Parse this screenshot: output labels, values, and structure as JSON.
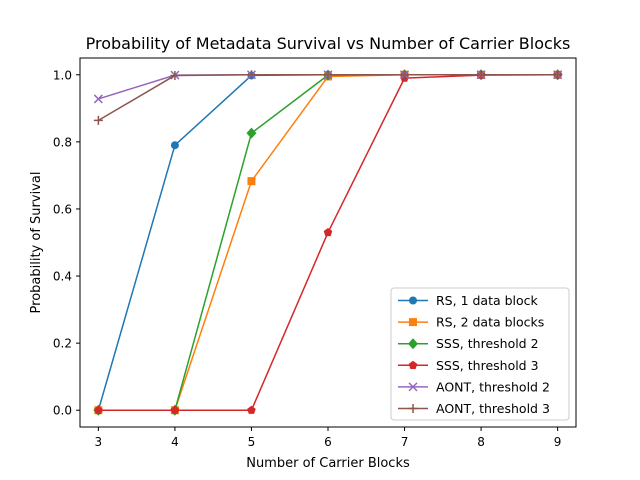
{
  "chart_data": {
    "type": "line",
    "title": "Probability of Metadata Survival vs Number of Carrier Blocks",
    "xlabel": "Number of Carrier Blocks",
    "ylabel": "Probability of Survival",
    "xlim": [
      2.76,
      9.24
    ],
    "ylim": [
      -0.05,
      1.05
    ],
    "x_ticks": [
      3,
      4,
      5,
      6,
      7,
      8,
      9
    ],
    "y_ticks": [
      0.0,
      0.2,
      0.4,
      0.6,
      0.8,
      1.0
    ],
    "y_tick_labels": [
      "0.0",
      "0.2",
      "0.4",
      "0.6",
      "0.8",
      "1.0"
    ],
    "grid": false,
    "legend_position": "lower-right",
    "series": [
      {
        "name": "RS, 1 data block",
        "color": "#1f77b4",
        "marker": "circle",
        "x": [
          3,
          4,
          5,
          6,
          7,
          8,
          9
        ],
        "y": [
          0.0,
          0.79,
          0.998,
          1.0,
          1.0,
          1.0,
          1.0
        ]
      },
      {
        "name": "RS, 2 data blocks",
        "color": "#ff7f0e",
        "marker": "square",
        "x": [
          3,
          4,
          5,
          6,
          7,
          8,
          9
        ],
        "y": [
          0.0,
          0.0,
          0.683,
          0.995,
          1.0,
          1.0,
          1.0
        ]
      },
      {
        "name": "SSS, threshold 2",
        "color": "#2ca02c",
        "marker": "diamond",
        "x": [
          3,
          4,
          5,
          6,
          7,
          8,
          9
        ],
        "y": [
          0.0,
          0.0,
          0.826,
          0.999,
          1.0,
          1.0,
          1.0
        ]
      },
      {
        "name": "SSS, threshold 3",
        "color": "#d62728",
        "marker": "pentagon",
        "x": [
          3,
          4,
          5,
          6,
          7,
          8,
          9
        ],
        "y": [
          0.0,
          0.0,
          0.0,
          0.53,
          0.99,
          0.999,
          1.0
        ]
      },
      {
        "name": "AONT, threshold 2",
        "color": "#9467bd",
        "marker": "x",
        "x": [
          3,
          4,
          5,
          6,
          7,
          8,
          9
        ],
        "y": [
          0.928,
          0.999,
          1.0,
          1.0,
          1.0,
          1.0,
          1.0
        ]
      },
      {
        "name": "AONT, threshold 3",
        "color": "#8c564b",
        "marker": "plus",
        "x": [
          3,
          4,
          5,
          6,
          7,
          8,
          9
        ],
        "y": [
          0.864,
          0.998,
          1.0,
          1.0,
          1.0,
          1.0,
          1.0
        ]
      }
    ]
  }
}
